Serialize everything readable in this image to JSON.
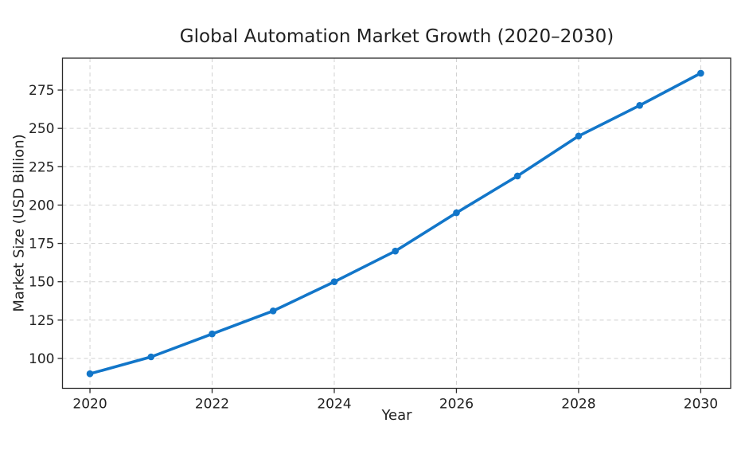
{
  "figure": {
    "title": "Global Automation Market Growth (2020–2030)",
    "xlabel": "Year",
    "ylabel": "Market Size (USD Billion)"
  },
  "chart_data": {
    "type": "line",
    "title": "Global Automation Market Growth (2020–2030)",
    "xlabel": "Year",
    "ylabel": "Market Size (USD Billion)",
    "x": [
      2020,
      2021,
      2022,
      2023,
      2024,
      2025,
      2026,
      2027,
      2028,
      2029,
      2030
    ],
    "series": [
      {
        "name": "Market Size (USD Billion)",
        "values": [
          90,
          101,
          116,
          131,
          150,
          170,
          195,
          219,
          245,
          265,
          286
        ]
      }
    ],
    "x_ticks": [
      2020,
      2022,
      2024,
      2026,
      2028,
      2030
    ],
    "y_ticks": [
      100,
      125,
      150,
      175,
      200,
      225,
      250,
      275
    ],
    "xlim": [
      2019.55,
      2030.49
    ],
    "ylim": [
      80.5,
      295.8
    ],
    "grid": true,
    "grid_style": "dashed",
    "legend_position": "none",
    "line_color": "#1276c9",
    "marker": "circle",
    "marker_color": "#1276c9",
    "grid_color": "#cccccc",
    "spine_color": "#2b2b2b",
    "tick_label_color": "#212121",
    "background_color": "#ffffff"
  }
}
